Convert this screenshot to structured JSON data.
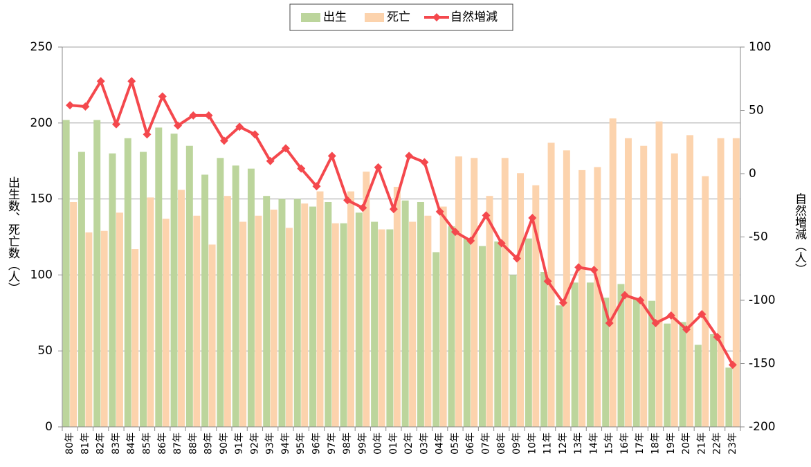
{
  "chart_data": {
    "type": "bar",
    "categories": [
      "80年",
      "81年",
      "82年",
      "83年",
      "84年",
      "85年",
      "86年",
      "87年",
      "88年",
      "89年",
      "90年",
      "91年",
      "92年",
      "93年",
      "94年",
      "95年",
      "96年",
      "97年",
      "98年",
      "99年",
      "00年",
      "01年",
      "02年",
      "03年",
      "04年",
      "05年",
      "06年",
      "07年",
      "08年",
      "09年",
      "10年",
      "11年",
      "12年",
      "13年",
      "14年",
      "15年",
      "16年",
      "17年",
      "18年",
      "19年",
      "20年",
      "21年",
      "22年",
      "23年"
    ],
    "series": [
      {
        "name": "出生",
        "type": "bar",
        "color": "#bcd59c",
        "values": [
          202,
          181,
          202,
          180,
          190,
          181,
          197,
          193,
          185,
          166,
          177,
          172,
          170,
          152,
          150,
          150,
          145,
          148,
          134,
          141,
          135,
          130,
          149,
          148,
          115,
          132,
          124,
          119,
          122,
          100,
          124,
          102,
          80,
          95,
          95,
          85,
          94,
          85,
          83,
          68,
          69,
          54,
          61,
          39
        ]
      },
      {
        "name": "死亡",
        "type": "bar",
        "color": "#fcd3ad",
        "values": [
          148,
          128,
          129,
          141,
          117,
          151,
          137,
          156,
          139,
          120,
          152,
          135,
          139,
          143,
          131,
          147,
          155,
          134,
          155,
          168,
          130,
          158,
          135,
          139,
          145,
          178,
          177,
          152,
          177,
          167,
          159,
          187,
          182,
          169,
          171,
          203,
          190,
          185,
          201,
          180,
          192,
          165,
          190,
          190
        ]
      },
      {
        "name": "自然増減",
        "type": "line",
        "axis": "y2",
        "color": "#f4484d",
        "values": [
          54,
          53,
          73,
          39,
          73,
          31,
          61,
          38,
          46,
          46,
          26,
          37,
          31,
          10,
          20,
          4,
          -10,
          14,
          -21,
          -27,
          5,
          -28,
          14,
          9,
          -30,
          -46,
          -53,
          -33,
          -55,
          -67,
          -35,
          -85,
          -102,
          -74,
          -76,
          -118,
          -96,
          -100,
          -118,
          -112,
          -123,
          -111,
          -129,
          -151
        ]
      }
    ],
    "y_label": "出生数、死亡数（人）",
    "y2_label": "自然増減（人）",
    "ylim": [
      0,
      250
    ],
    "yticks": [
      0,
      50,
      100,
      150,
      200,
      250
    ],
    "y2lim": [
      -200,
      100
    ],
    "y2ticks": [
      -200,
      -150,
      -100,
      -50,
      0,
      50,
      100
    ],
    "grid": true,
    "legend": "top"
  }
}
